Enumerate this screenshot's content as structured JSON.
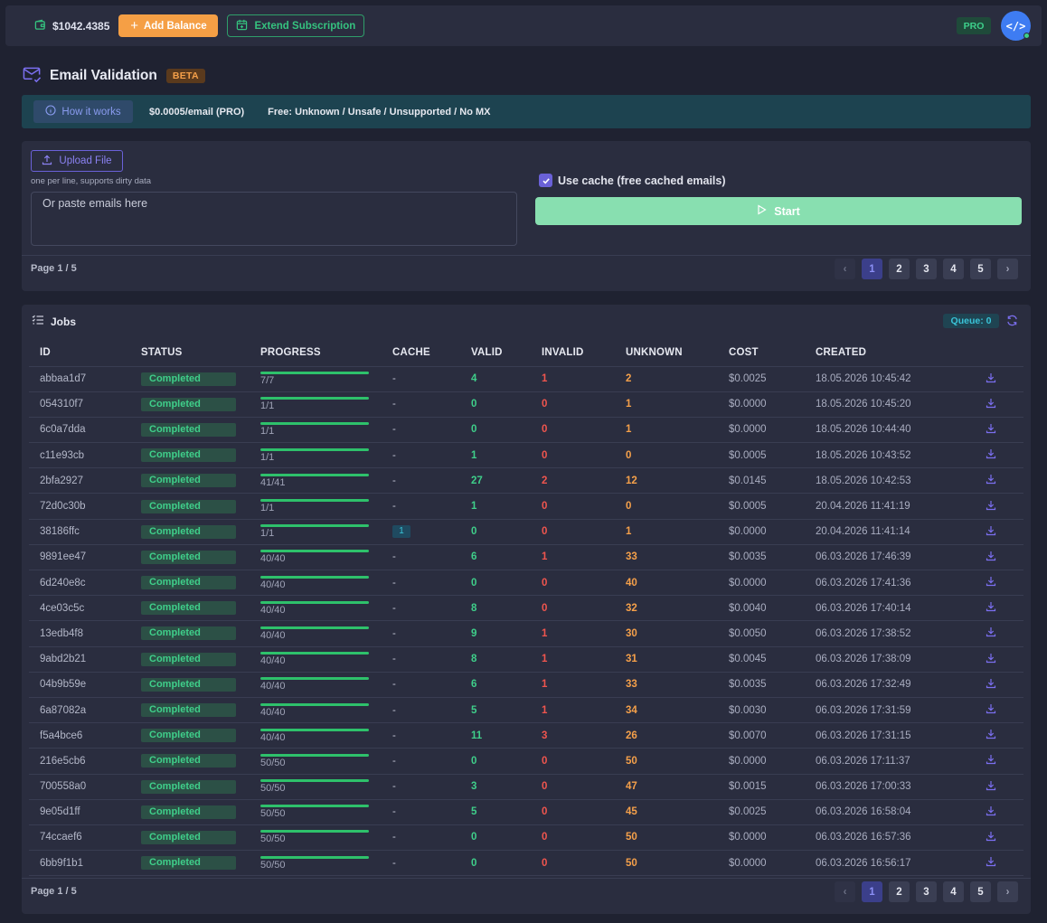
{
  "topbar": {
    "balance": "$1042.4385",
    "add_balance": "Add Balance",
    "extend_subscription": "Extend Subscription",
    "plan_badge": "PRO",
    "avatar_glyph": "</>"
  },
  "page": {
    "title": "Email Validation",
    "badge": "BETA"
  },
  "info": {
    "how_it_works": "How it works",
    "price": "$0.0005/email (PRO)",
    "free": "Free: Unknown / Unsafe / Unsupported / No MX"
  },
  "upload": {
    "upload_label": "Upload File",
    "hint": "one per line, supports dirty data",
    "placeholder": "Or paste emails here",
    "use_cache_label": "Use cache (free cached emails)",
    "use_cache_checked": true,
    "start_label": "Start",
    "page_info": "Page 1 / 5",
    "pages": [
      "1",
      "2",
      "3",
      "4",
      "5"
    ]
  },
  "jobs": {
    "title": "Jobs",
    "queue": "Queue: 0",
    "columns": [
      "ID",
      "STATUS",
      "PROGRESS",
      "CACHE",
      "VALID",
      "INVALID",
      "UNKNOWN",
      "COST",
      "CREATED"
    ],
    "rows": [
      {
        "id": "abbaa1d7",
        "status": "Completed",
        "progress": "7/7",
        "cache": "-",
        "valid": "4",
        "invalid": "1",
        "unknown": "2",
        "cost": "$0.0025",
        "created": "18.05.2026 10:45:42"
      },
      {
        "id": "054310f7",
        "status": "Completed",
        "progress": "1/1",
        "cache": "-",
        "valid": "0",
        "invalid": "0",
        "unknown": "1",
        "cost": "$0.0000",
        "created": "18.05.2026 10:45:20"
      },
      {
        "id": "6c0a7dda",
        "status": "Completed",
        "progress": "1/1",
        "cache": "-",
        "valid": "0",
        "invalid": "0",
        "unknown": "1",
        "cost": "$0.0000",
        "created": "18.05.2026 10:44:40"
      },
      {
        "id": "c11e93cb",
        "status": "Completed",
        "progress": "1/1",
        "cache": "-",
        "valid": "1",
        "invalid": "0",
        "unknown": "0",
        "cost": "$0.0005",
        "created": "18.05.2026 10:43:52"
      },
      {
        "id": "2bfa2927",
        "status": "Completed",
        "progress": "41/41",
        "cache": "-",
        "valid": "27",
        "invalid": "2",
        "unknown": "12",
        "cost": "$0.0145",
        "created": "18.05.2026 10:42:53"
      },
      {
        "id": "72d0c30b",
        "status": "Completed",
        "progress": "1/1",
        "cache": "-",
        "valid": "1",
        "invalid": "0",
        "unknown": "0",
        "cost": "$0.0005",
        "created": "20.04.2026 11:41:19"
      },
      {
        "id": "38186ffc",
        "status": "Completed",
        "progress": "1/1",
        "cache": "1",
        "valid": "0",
        "invalid": "0",
        "unknown": "1",
        "cost": "$0.0000",
        "created": "20.04.2026 11:41:14"
      },
      {
        "id": "9891ee47",
        "status": "Completed",
        "progress": "40/40",
        "cache": "-",
        "valid": "6",
        "invalid": "1",
        "unknown": "33",
        "cost": "$0.0035",
        "created": "06.03.2026 17:46:39"
      },
      {
        "id": "6d240e8c",
        "status": "Completed",
        "progress": "40/40",
        "cache": "-",
        "valid": "0",
        "invalid": "0",
        "unknown": "40",
        "cost": "$0.0000",
        "created": "06.03.2026 17:41:36"
      },
      {
        "id": "4ce03c5c",
        "status": "Completed",
        "progress": "40/40",
        "cache": "-",
        "valid": "8",
        "invalid": "0",
        "unknown": "32",
        "cost": "$0.0040",
        "created": "06.03.2026 17:40:14"
      },
      {
        "id": "13edb4f8",
        "status": "Completed",
        "progress": "40/40",
        "cache": "-",
        "valid": "9",
        "invalid": "1",
        "unknown": "30",
        "cost": "$0.0050",
        "created": "06.03.2026 17:38:52"
      },
      {
        "id": "9abd2b21",
        "status": "Completed",
        "progress": "40/40",
        "cache": "-",
        "valid": "8",
        "invalid": "1",
        "unknown": "31",
        "cost": "$0.0045",
        "created": "06.03.2026 17:38:09"
      },
      {
        "id": "04b9b59e",
        "status": "Completed",
        "progress": "40/40",
        "cache": "-",
        "valid": "6",
        "invalid": "1",
        "unknown": "33",
        "cost": "$0.0035",
        "created": "06.03.2026 17:32:49"
      },
      {
        "id": "6a87082a",
        "status": "Completed",
        "progress": "40/40",
        "cache": "-",
        "valid": "5",
        "invalid": "1",
        "unknown": "34",
        "cost": "$0.0030",
        "created": "06.03.2026 17:31:59"
      },
      {
        "id": "f5a4bce6",
        "status": "Completed",
        "progress": "40/40",
        "cache": "-",
        "valid": "11",
        "invalid": "3",
        "unknown": "26",
        "cost": "$0.0070",
        "created": "06.03.2026 17:31:15"
      },
      {
        "id": "216e5cb6",
        "status": "Completed",
        "progress": "50/50",
        "cache": "-",
        "valid": "0",
        "invalid": "0",
        "unknown": "50",
        "cost": "$0.0000",
        "created": "06.03.2026 17:11:37"
      },
      {
        "id": "700558a0",
        "status": "Completed",
        "progress": "50/50",
        "cache": "-",
        "valid": "3",
        "invalid": "0",
        "unknown": "47",
        "cost": "$0.0015",
        "created": "06.03.2026 17:00:33"
      },
      {
        "id": "9e05d1ff",
        "status": "Completed",
        "progress": "50/50",
        "cache": "-",
        "valid": "5",
        "invalid": "0",
        "unknown": "45",
        "cost": "$0.0025",
        "created": "06.03.2026 16:58:04"
      },
      {
        "id": "74ccaef6",
        "status": "Completed",
        "progress": "50/50",
        "cache": "-",
        "valid": "0",
        "invalid": "0",
        "unknown": "50",
        "cost": "$0.0000",
        "created": "06.03.2026 16:57:36"
      },
      {
        "id": "6bb9f1b1",
        "status": "Completed",
        "progress": "50/50",
        "cache": "-",
        "valid": "0",
        "invalid": "0",
        "unknown": "50",
        "cost": "$0.0000",
        "created": "06.03.2026 16:56:17"
      }
    ],
    "page_info": "Page 1 / 5",
    "pages": [
      "1",
      "2",
      "3",
      "4",
      "5"
    ]
  },
  "colors": {
    "background": "#1f2231",
    "card": "#2a2d3f",
    "accent_purple": "#6a61d8",
    "orange": "#f59f45",
    "green": "#3fcf8a",
    "red": "#f0554e",
    "info_bar": "#1d4350"
  },
  "icons": {
    "wallet": "wallet-icon",
    "add": "plus-icon",
    "extend": "calendar-plus-icon",
    "mail": "mail-check-icon",
    "info": "info-icon",
    "upload": "upload-icon",
    "play": "play-icon",
    "list": "list-icon",
    "refresh": "refresh-icon",
    "download": "download-icon"
  }
}
